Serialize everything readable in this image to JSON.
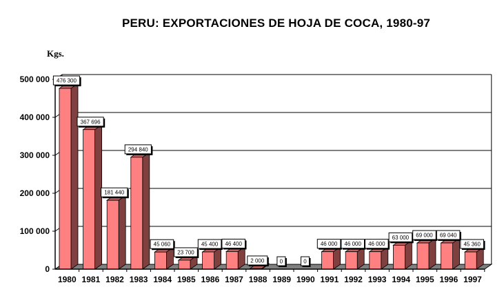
{
  "chart_data": {
    "type": "bar",
    "title": "PERU: EXPORTACIONES DE HOJA DE COCA, 1980-97",
    "ylabel": "Kgs.",
    "xlabel": "",
    "categories": [
      "1980",
      "1981",
      "1982",
      "1983",
      "1984",
      "1985",
      "1986",
      "1987",
      "1988",
      "1989",
      "1990",
      "1991",
      "1992",
      "1993",
      "1994",
      "1995",
      "1996",
      "1997"
    ],
    "values": [
      476300,
      367696,
      181440,
      294840,
      45060,
      23700,
      45400,
      46400,
      2000,
      0,
      0,
      46000,
      46000,
      46000,
      63000,
      69000,
      69040,
      45360
    ],
    "value_labels": [
      "476 300",
      "367 696",
      "181 440",
      "294 840",
      "45 060",
      "23 700",
      "45 400",
      "46 400",
      "2 000",
      "0",
      "0",
      "46 000",
      "46 000",
      "46 000",
      "63 000",
      "69 000",
      "69 040",
      "45 360"
    ],
    "y_ticks": [
      0,
      100000,
      200000,
      300000,
      400000,
      500000
    ],
    "y_tick_labels": [
      "0",
      "100 000",
      "200 000",
      "300 000",
      "400 000",
      "500 000"
    ],
    "ylim": [
      0,
      500000
    ],
    "grid": true,
    "legend": "none",
    "colors": {
      "bar_front": "#ff8080",
      "bar_side": "#804040",
      "floor": "#808080",
      "background": "#ffffff"
    }
  }
}
